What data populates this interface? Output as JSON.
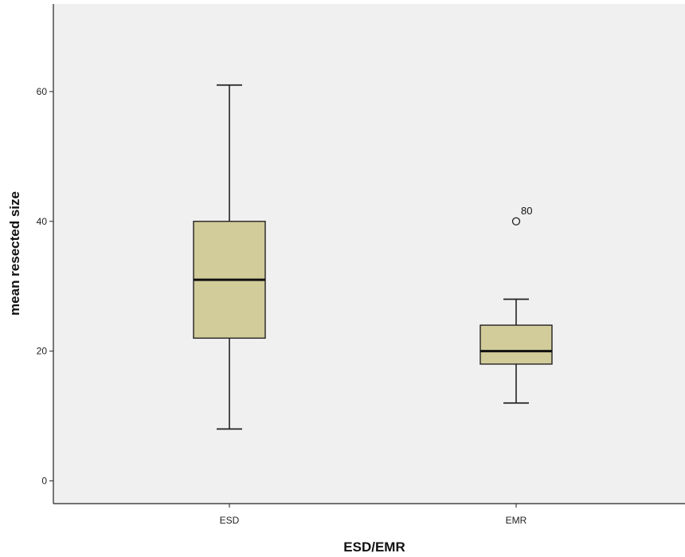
{
  "chart_data": {
    "type": "boxplot",
    "xlabel": "ESD/EMR",
    "ylabel": "mean resected size",
    "ylim": [
      -3.5,
      73.5
    ],
    "yticks": [
      0,
      20,
      40,
      60
    ],
    "grid": false,
    "colors": {
      "plot_background": "#f0f0f0",
      "box_fill": "#d2cc9a",
      "box_stroke": "#222222",
      "median": "#111111",
      "axis": "#222222"
    },
    "categories": [
      "ESD",
      "EMR"
    ],
    "boxes": [
      {
        "category": "ESD",
        "whisker_low": 8,
        "q1": 22,
        "median": 31,
        "q3": 40,
        "whisker_high": 61,
        "outliers": []
      },
      {
        "category": "EMR",
        "whisker_low": 12,
        "q1": 18,
        "median": 20,
        "q3": 24,
        "whisker_high": 28,
        "outliers": [
          {
            "value": 40,
            "label": "80"
          }
        ]
      }
    ]
  }
}
